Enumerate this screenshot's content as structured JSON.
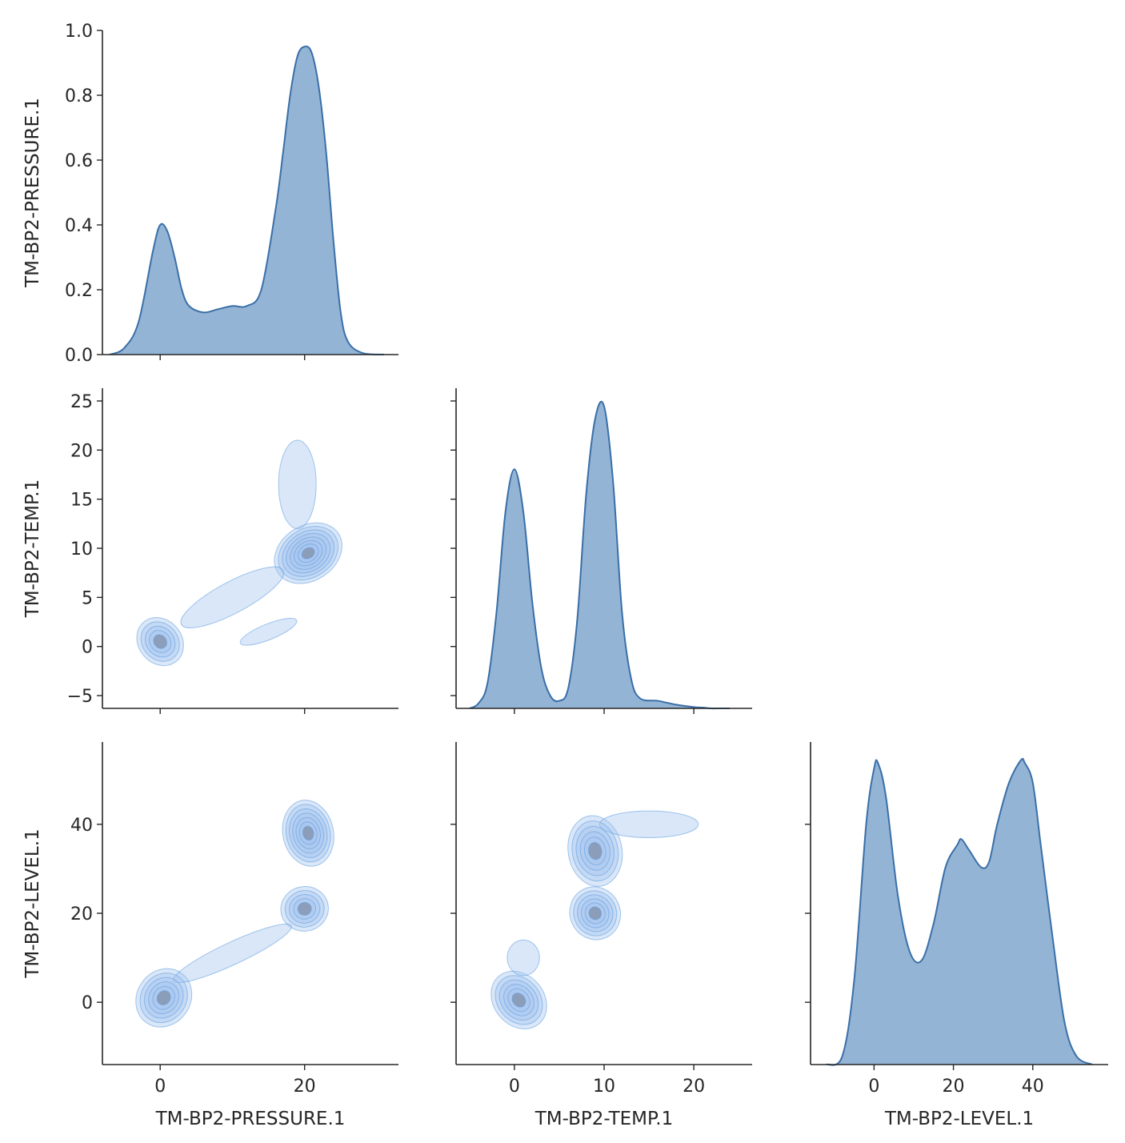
{
  "chart_data": {
    "type": "pairplot",
    "variables": [
      "TM-BP2-PRESSURE.1",
      "TM-BP2-TEMP.1",
      "TM-BP2-LEVEL.1"
    ],
    "corner": true,
    "colors": {
      "fill": "#7ba4ca",
      "line": "#3a6fa8",
      "contour_fill": "#a6c5ee",
      "contour_line": "#5b9be0",
      "core": "#8a9bb5"
    },
    "diagonal": [
      {
        "variable": "TM-BP2-PRESSURE.1",
        "type": "kde",
        "y_axis_label": "TM-BP2-PRESSURE.1",
        "ylim": [
          0,
          1.0
        ],
        "yticks": [
          0.0,
          0.2,
          0.4,
          0.6,
          0.8,
          1.0
        ],
        "ytick_labels": [
          "0.0",
          "0.2",
          "0.4",
          "0.6",
          "0.8",
          "1.0"
        ],
        "xlim": [
          -8,
          33
        ],
        "x": [
          -7,
          -5,
          -3,
          -1,
          0,
          1,
          2,
          3,
          4,
          6,
          8,
          10,
          12,
          14,
          16,
          17,
          18,
          19,
          20,
          21,
          22,
          23,
          24,
          25,
          26,
          28,
          31
        ],
        "y": [
          0.0,
          0.02,
          0.1,
          0.32,
          0.4,
          0.38,
          0.3,
          0.2,
          0.15,
          0.13,
          0.14,
          0.15,
          0.15,
          0.2,
          0.45,
          0.62,
          0.8,
          0.92,
          0.95,
          0.93,
          0.82,
          0.62,
          0.35,
          0.13,
          0.04,
          0.005,
          0.0
        ]
      },
      {
        "variable": "TM-BP2-TEMP.1",
        "type": "kde",
        "xlim": [
          -6.5,
          26.5
        ],
        "x": [
          -5,
          -4,
          -3,
          -2,
          -1,
          0,
          1,
          2,
          3,
          4,
          5,
          6,
          7,
          8,
          9,
          10,
          11,
          12,
          13,
          14,
          16,
          18,
          20,
          21,
          22,
          23,
          24
        ],
        "y": [
          0.0,
          0.02,
          0.1,
          0.38,
          0.78,
          0.95,
          0.78,
          0.42,
          0.16,
          0.05,
          0.03,
          0.08,
          0.35,
          0.85,
          1.15,
          1.2,
          0.9,
          0.38,
          0.12,
          0.04,
          0.03,
          0.015,
          0.005,
          0.003,
          0.0,
          0.0,
          0.0
        ]
      },
      {
        "variable": "TM-BP2-LEVEL.1",
        "type": "kde",
        "xlim": [
          -16,
          59
        ],
        "x": [
          -12,
          -8,
          -5,
          -2,
          0,
          1,
          3,
          6,
          9,
          12,
          15,
          18,
          21,
          22,
          24,
          27,
          29,
          31,
          34,
          37,
          38,
          40,
          42,
          45,
          48,
          51,
          55
        ],
        "y": [
          0.0,
          0.03,
          0.3,
          0.85,
          1.05,
          1.07,
          0.95,
          0.6,
          0.4,
          0.37,
          0.5,
          0.7,
          0.78,
          0.8,
          0.76,
          0.7,
          0.72,
          0.85,
          1.0,
          1.08,
          1.07,
          1.0,
          0.78,
          0.45,
          0.15,
          0.03,
          0.0
        ]
      }
    ],
    "lower": [
      {
        "x_variable": "TM-BP2-PRESSURE.1",
        "y_variable": "TM-BP2-TEMP.1",
        "type": "kde2d",
        "y_axis_label": "TM-BP2-TEMP.1",
        "xlim": [
          -8,
          33
        ],
        "ylim": [
          -6.3,
          26.3
        ],
        "yticks": [
          -5,
          0,
          5,
          10,
          15,
          20,
          25
        ],
        "ytick_labels": [
          "−5",
          "0",
          "5",
          "10",
          "15",
          "20",
          "25"
        ],
        "modes": [
          {
            "x": 0,
            "y": 0.5,
            "sx": 3.0,
            "sy": 2.6,
            "angle": 40,
            "levels": 5
          },
          {
            "x": 20.5,
            "y": 9.5,
            "sx": 5.0,
            "sy": 2.8,
            "angle": 33,
            "levels": 8
          },
          {
            "x": 19,
            "y": 16.5,
            "sx": 2.6,
            "sy": 4.5,
            "angle": 0,
            "levels": 1
          },
          {
            "x": 10,
            "y": 5,
            "sx": 8.0,
            "sy": 1.6,
            "angle": 28,
            "levels": 1
          },
          {
            "x": 15,
            "y": 1.5,
            "sx": 4.2,
            "sy": 0.8,
            "angle": 22,
            "levels": 1
          }
        ]
      },
      {
        "x_variable": "TM-BP2-PRESSURE.1",
        "y_variable": "TM-BP2-LEVEL.1",
        "type": "kde2d",
        "y_axis_label": "TM-BP2-LEVEL.1",
        "xlabel": "TM-BP2-PRESSURE.1",
        "xlim": [
          -8,
          33
        ],
        "ylim": [
          -14,
          58.5
        ],
        "xticks": [
          0,
          20
        ],
        "xtick_labels": [
          "0",
          "20"
        ],
        "yticks": [
          0,
          20,
          40
        ],
        "ytick_labels": [
          "0",
          "20",
          "40"
        ],
        "modes": [
          {
            "x": 0.5,
            "y": 1,
            "sx": 4.2,
            "sy": 6.0,
            "angle": 55,
            "levels": 6
          },
          {
            "x": 20.5,
            "y": 38,
            "sx": 3.5,
            "sy": 7.5,
            "angle": 12,
            "levels": 7
          },
          {
            "x": 20,
            "y": 21,
            "sx": 3.3,
            "sy": 5.0,
            "angle": 10,
            "levels": 5
          },
          {
            "x": 10,
            "y": 11,
            "sx": 9.0,
            "sy": 2.5,
            "angle": 25,
            "levels": 1
          }
        ]
      },
      {
        "x_variable": "TM-BP2-TEMP.1",
        "y_variable": "TM-BP2-LEVEL.1",
        "type": "kde2d",
        "xlabel": "TM-BP2-TEMP.1",
        "xlim": [
          -6.5,
          26.5
        ],
        "ylim": [
          -14,
          58.5
        ],
        "xticks": [
          0,
          10,
          20
        ],
        "xtick_labels": [
          "0",
          "10",
          "20"
        ],
        "modes": [
          {
            "x": 0.5,
            "y": 0.5,
            "sx": 2.8,
            "sy": 7.0,
            "angle": 40,
            "levels": 6
          },
          {
            "x": 9,
            "y": 34,
            "sx": 3.0,
            "sy": 8.0,
            "angle": 10,
            "levels": 6
          },
          {
            "x": 9,
            "y": 20,
            "sx": 2.8,
            "sy": 6.0,
            "angle": 25,
            "levels": 6
          },
          {
            "x": 15,
            "y": 40,
            "sx": 5.5,
            "sy": 3.0,
            "angle": 0,
            "levels": 1
          },
          {
            "x": 1,
            "y": 10,
            "sx": 1.8,
            "sy": 4.0,
            "angle": 0,
            "levels": 1
          }
        ]
      }
    ],
    "bottom_axes": [
      {
        "xlabel": "TM-BP2-LEVEL.1",
        "xticks": [
          0,
          20,
          40
        ],
        "xtick_labels": [
          "0",
          "20",
          "40"
        ]
      }
    ],
    "upper_axes_xticks": [
      {
        "xticks": [
          0,
          20
        ]
      },
      {
        "xticks": [
          0,
          10,
          20
        ]
      }
    ]
  }
}
